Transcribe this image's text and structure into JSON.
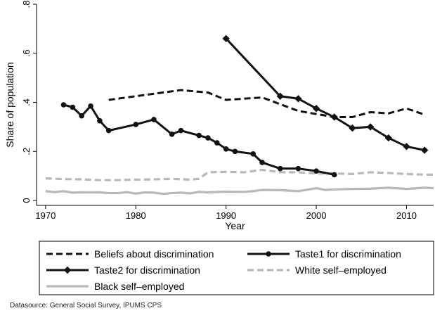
{
  "chart_data": {
    "type": "line",
    "xlabel": "Year",
    "ylabel": "Share of population",
    "xlim": [
      1969,
      2013
    ],
    "ylim": [
      -0.02,
      0.8
    ],
    "xticks": [
      1970,
      1980,
      1990,
      2000,
      2010
    ],
    "xtick_labels": [
      "1970",
      "1980",
      "1990",
      "2000",
      "2010"
    ],
    "yticks": [
      0,
      0.2,
      0.4,
      0.6,
      0.8
    ],
    "ytick_labels": [
      "0",
      ".2",
      ".4",
      ".6",
      ".8"
    ],
    "grid": false,
    "legend_placement": "bottom",
    "series": [
      {
        "name": "Beliefs about discrimination",
        "style": "dashed",
        "color": "#111111",
        "marker": "none",
        "x": [
          1977,
          1985,
          1988,
          1990,
          1994,
          1998,
          2002,
          2004,
          2006,
          2008,
          2010,
          2012
        ],
        "y": [
          0.41,
          0.45,
          0.44,
          0.41,
          0.42,
          0.365,
          0.34,
          0.34,
          0.36,
          0.355,
          0.375,
          0.35
        ]
      },
      {
        "name": "Taste1 for discrimination",
        "style": "solid",
        "color": "#111111",
        "marker": "circle",
        "x": [
          1972,
          1973,
          1974,
          1975,
          1976,
          1977,
          1980,
          1982,
          1984,
          1985,
          1987,
          1988,
          1989,
          1990,
          1991,
          1993,
          1994,
          1996,
          1998,
          2000,
          2002
        ],
        "y": [
          0.39,
          0.38,
          0.345,
          0.385,
          0.325,
          0.285,
          0.31,
          0.33,
          0.27,
          0.285,
          0.265,
          0.255,
          0.235,
          0.21,
          0.2,
          0.19,
          0.155,
          0.13,
          0.13,
          0.12,
          0.105
        ]
      },
      {
        "name": "Taste2 for discrimination",
        "style": "solid",
        "color": "#111111",
        "marker": "diamond",
        "x": [
          1990,
          1996,
          1998,
          2000,
          2002,
          2004,
          2006,
          2008,
          2010,
          2012
        ],
        "y": [
          0.66,
          0.425,
          0.415,
          0.375,
          0.34,
          0.295,
          0.3,
          0.255,
          0.22,
          0.205
        ]
      },
      {
        "name": "White self–employed",
        "style": "dashed",
        "color": "#b8b8b8",
        "marker": "none",
        "x": [
          1970,
          1972,
          1974,
          1976,
          1978,
          1980,
          1982,
          1984,
          1986,
          1987,
          1988,
          1990,
          1992,
          1994,
          1996,
          1998,
          2000,
          2002,
          2004,
          2006,
          2008,
          2010,
          2012,
          2013
        ],
        "y": [
          0.09,
          0.087,
          0.086,
          0.083,
          0.083,
          0.085,
          0.086,
          0.088,
          0.085,
          0.088,
          0.115,
          0.117,
          0.115,
          0.125,
          0.115,
          0.115,
          0.11,
          0.11,
          0.108,
          0.115,
          0.112,
          0.108,
          0.105,
          0.105
        ]
      },
      {
        "name": "Black self–employed",
        "style": "solid",
        "color": "#b8b8b8",
        "marker": "none",
        "x": [
          1970,
          1971,
          1972,
          1973,
          1974,
          1976,
          1977,
          1978,
          1979,
          1980,
          1981,
          1982,
          1983,
          1984,
          1985,
          1986,
          1987,
          1988,
          1990,
          1992,
          1993,
          1994,
          1996,
          1998,
          2000,
          2001,
          2002,
          2004,
          2006,
          2008,
          2010,
          2012,
          2013
        ],
        "y": [
          0.038,
          0.034,
          0.038,
          0.032,
          0.033,
          0.033,
          0.03,
          0.03,
          0.034,
          0.028,
          0.033,
          0.032,
          0.027,
          0.03,
          0.032,
          0.029,
          0.035,
          0.033,
          0.036,
          0.035,
          0.038,
          0.043,
          0.042,
          0.038,
          0.05,
          0.043,
          0.045,
          0.047,
          0.048,
          0.052,
          0.047,
          0.052,
          0.05
        ]
      }
    ]
  },
  "source_note": "Datasource: General Social Survey, IPUMS CPS"
}
